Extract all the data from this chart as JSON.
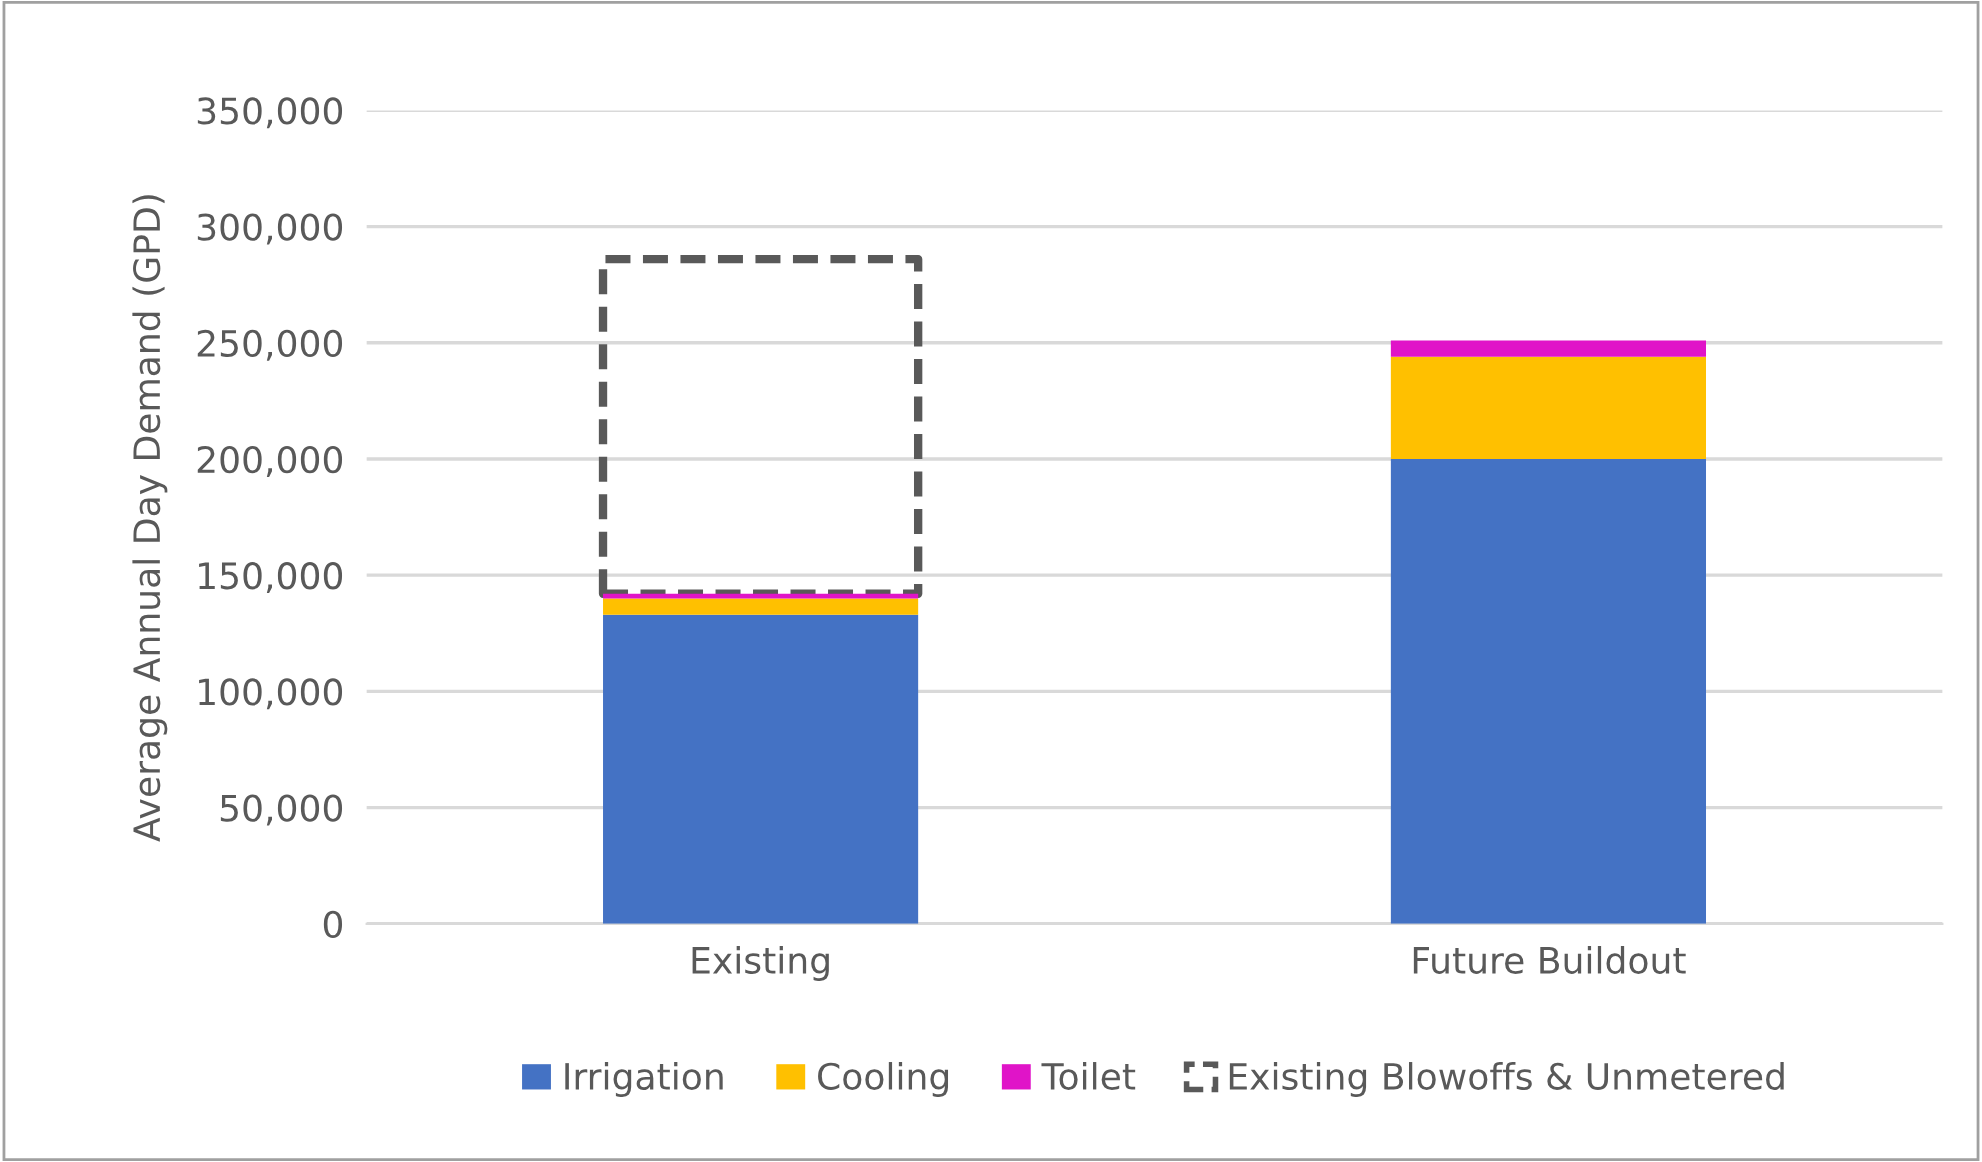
{
  "chart_data": {
    "type": "bar",
    "stacked": true,
    "ylabel": "Average Annual Day Demand (GPD)",
    "categories": [
      "Existing",
      "Future Buildout"
    ],
    "series": [
      {
        "name": "Irrigation",
        "color": "#4472c4",
        "values": [
          133000,
          200000
        ]
      },
      {
        "name": "Cooling",
        "color": "#ffc000",
        "values": [
          7000,
          44000
        ]
      },
      {
        "name": "Toilet",
        "color": "#e014c8",
        "values": [
          2000,
          7000
        ]
      },
      {
        "name": "Existing Blowoffs & Unmetered",
        "color": "#595959",
        "line_style": "dashed",
        "values": [
          144000,
          null
        ]
      }
    ],
    "ylim": [
      0,
      350000
    ],
    "yticks": [
      {
        "value": 0,
        "label": "0"
      },
      {
        "value": 50000,
        "label": "50,000"
      },
      {
        "value": 100000,
        "label": "100,000"
      },
      {
        "value": 150000,
        "label": "150,000"
      },
      {
        "value": 200000,
        "label": "200,000"
      },
      {
        "value": 250000,
        "label": "250,000"
      },
      {
        "value": 300000,
        "label": "300,000"
      },
      {
        "value": 350000,
        "label": "350,000"
      }
    ],
    "grid": "y",
    "legend": "bottom"
  }
}
